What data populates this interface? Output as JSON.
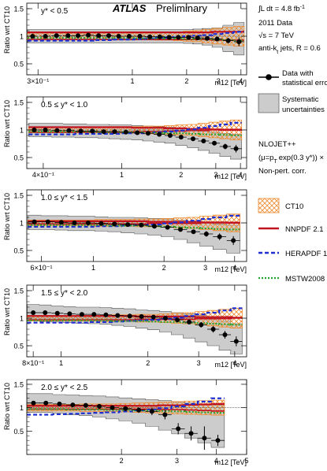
{
  "header": {
    "experiment": "ATLAS",
    "status": "Preliminary",
    "lumi_prefix": "∫L dt = 4.8 fb",
    "lumi_exp": "-1",
    "dataset": "2011 Data",
    "energy": "√s = 7 TeV",
    "jets": "anti-k",
    "jets_sub": "t",
    "jets_suffix": " jets, R = 0.6"
  },
  "legend": {
    "data": [
      "Data with",
      "statistical error"
    ],
    "syst": [
      "Systematic",
      "uncertainties"
    ],
    "theory": [
      "NLOJET++",
      "(μ=p",
      "exp(0.3 y*)) ×",
      "Non-pert. corr."
    ],
    "theory_sub": "T",
    "ct10": "CT10",
    "nnpdf": "NNPDF 2.1",
    "herapdf": "HERAPDF 1.5",
    "mstw": "MSTW2008"
  },
  "colors": {
    "ct10": "#ee8a2e",
    "nnpdf": "#c0131f",
    "herapdf": "#1f2fd0",
    "mstw": "#22a52c",
    "syst": "#cccccc",
    "data": "#000000"
  },
  "chart_data": [
    {
      "type": "scatter",
      "label": "y* < 0.5",
      "ylabel": "Ratio wrt CT10",
      "xlabel": "m12 [TeV]",
      "xscale": "log",
      "xlim": [
        0.26,
        4.3
      ],
      "ylim": [
        0.3,
        1.6
      ],
      "yticks": [
        0.5,
        1.0,
        1.5
      ],
      "xticklabels": [
        [
          0.3,
          "3×10⁻¹"
        ],
        [
          1,
          "1"
        ],
        [
          2,
          "2"
        ],
        [
          3,
          "3"
        ],
        [
          4,
          "4"
        ]
      ],
      "x": [
        0.28,
        0.33,
        0.38,
        0.44,
        0.5,
        0.57,
        0.65,
        0.74,
        0.84,
        0.96,
        1.1,
        1.25,
        1.42,
        1.6,
        1.8,
        2.05,
        2.3,
        2.6,
        2.95,
        3.4,
        3.9
      ],
      "data_y": [
        1.0,
        1.0,
        1.01,
        1.01,
        1.01,
        1.02,
        1.01,
        1.01,
        1.0,
        1.0,
        1.0,
        0.99,
        0.99,
        0.98,
        0.98,
        0.98,
        0.97,
        0.96,
        0.95,
        0.92,
        0.9
      ],
      "stat_err": [
        0.005,
        0.005,
        0.005,
        0.005,
        0.005,
        0.005,
        0.005,
        0.005,
        0.005,
        0.005,
        0.005,
        0.01,
        0.01,
        0.01,
        0.01,
        0.01,
        0.01,
        0.02,
        0.03,
        0.05,
        0.08
      ],
      "syst_up": [
        1.12,
        1.12,
        1.12,
        1.12,
        1.12,
        1.12,
        1.12,
        1.12,
        1.12,
        1.12,
        1.12,
        1.12,
        1.12,
        1.12,
        1.12,
        1.12,
        1.13,
        1.14,
        1.15,
        1.2,
        1.25
      ],
      "syst_down": [
        0.88,
        0.88,
        0.88,
        0.88,
        0.88,
        0.88,
        0.88,
        0.88,
        0.88,
        0.88,
        0.88,
        0.88,
        0.88,
        0.88,
        0.88,
        0.87,
        0.86,
        0.84,
        0.8,
        0.72,
        0.66
      ],
      "ct10_band": [
        0.94,
        0.94,
        0.94,
        0.94,
        0.94,
        0.94,
        0.94,
        0.94,
        0.94,
        0.94,
        0.94,
        0.94,
        0.93,
        0.93,
        0.92,
        0.91,
        0.9,
        0.88,
        0.86,
        0.84,
        0.82
      ],
      "nnpdf": [
        1.07,
        1.07,
        1.07,
        1.07,
        1.07,
        1.07,
        1.07,
        1.07,
        1.07,
        1.07,
        1.07,
        1.07,
        1.07,
        1.07,
        1.07,
        1.07,
        1.07,
        1.07,
        1.08,
        1.08,
        1.08
      ],
      "herapdf": [
        0.92,
        0.92,
        0.92,
        0.92,
        0.92,
        0.92,
        0.93,
        0.93,
        0.94,
        0.94,
        0.95,
        0.96,
        0.97,
        0.98,
        0.99,
        1.0,
        1.01,
        1.02,
        1.04,
        1.06,
        1.08
      ],
      "mstw": [
        0.97,
        0.97,
        0.97,
        0.97,
        0.97,
        0.97,
        0.97,
        0.97,
        0.97,
        0.97,
        0.96,
        0.96,
        0.96,
        0.96,
        0.96,
        0.95,
        0.95,
        0.95,
        0.94,
        0.93,
        0.92
      ]
    },
    {
      "type": "scatter",
      "label": "0.5 ≤ y* < 1.0",
      "ylabel": "Ratio wrt CT10",
      "xlabel": "m12 [TeV]",
      "xscale": "log",
      "xlim": [
        0.33,
        4.3
      ],
      "ylim": [
        0.3,
        1.6
      ],
      "yticks": [
        0.5,
        1.0,
        1.5
      ],
      "xticklabels": [
        [
          0.4,
          "4×10⁻¹"
        ],
        [
          1,
          "1"
        ],
        [
          2,
          "2"
        ],
        [
          3,
          "3"
        ],
        [
          4,
          "4"
        ]
      ],
      "x": [
        0.36,
        0.41,
        0.47,
        0.54,
        0.62,
        0.71,
        0.81,
        0.92,
        1.05,
        1.2,
        1.36,
        1.55,
        1.76,
        2.0,
        2.3,
        2.6,
        2.95,
        3.35,
        3.8
      ],
      "data_y": [
        1.0,
        1.0,
        0.99,
        0.99,
        0.98,
        0.98,
        0.97,
        0.97,
        0.96,
        0.95,
        0.94,
        0.92,
        0.9,
        0.87,
        0.84,
        0.8,
        0.76,
        0.7,
        0.66
      ],
      "stat_err": [
        0.005,
        0.005,
        0.005,
        0.005,
        0.005,
        0.005,
        0.005,
        0.005,
        0.005,
        0.01,
        0.01,
        0.01,
        0.01,
        0.02,
        0.02,
        0.03,
        0.04,
        0.05,
        0.07
      ],
      "syst_up": [
        1.12,
        1.12,
        1.12,
        1.11,
        1.11,
        1.1,
        1.1,
        1.09,
        1.09,
        1.08,
        1.07,
        1.06,
        1.05,
        1.03,
        1.0,
        0.98,
        0.96,
        0.94,
        0.92
      ],
      "syst_down": [
        0.88,
        0.88,
        0.87,
        0.87,
        0.86,
        0.86,
        0.85,
        0.84,
        0.83,
        0.82,
        0.8,
        0.78,
        0.76,
        0.72,
        0.68,
        0.63,
        0.58,
        0.52,
        0.47
      ],
      "ct10_band": [
        0.95,
        0.95,
        0.95,
        0.95,
        0.95,
        0.95,
        0.95,
        0.94,
        0.94,
        0.94,
        0.93,
        0.93,
        0.92,
        0.91,
        0.9,
        0.88,
        0.86,
        0.84,
        0.82
      ],
      "nnpdf": [
        1.05,
        1.05,
        1.05,
        1.05,
        1.05,
        1.05,
        1.05,
        1.05,
        1.05,
        1.04,
        1.04,
        1.04,
        1.03,
        1.03,
        1.02,
        1.02,
        1.01,
        1.0,
        1.0
      ],
      "herapdf": [
        0.92,
        0.92,
        0.92,
        0.92,
        0.93,
        0.93,
        0.93,
        0.93,
        0.94,
        0.94,
        0.95,
        0.96,
        0.97,
        0.99,
        1.01,
        1.04,
        1.07,
        1.1,
        1.13
      ],
      "mstw": [
        0.97,
        0.97,
        0.97,
        0.97,
        0.97,
        0.97,
        0.96,
        0.96,
        0.96,
        0.96,
        0.95,
        0.95,
        0.94,
        0.94,
        0.93,
        0.92,
        0.92,
        0.91,
        0.9
      ]
    },
    {
      "type": "scatter",
      "label": "1.0 ≤ y* < 1.5",
      "ylabel": "Ratio wrt CT10",
      "xlabel": "m12 [TeV]",
      "xscale": "log",
      "xlim": [
        0.52,
        4.5
      ],
      "ylim": [
        0.3,
        1.6
      ],
      "yticks": [
        0.5,
        1.0,
        1.5
      ],
      "xticklabels": [
        [
          0.6,
          "6×10⁻¹"
        ],
        [
          1,
          "1"
        ],
        [
          2,
          "2"
        ],
        [
          3,
          "3"
        ],
        [
          4,
          "4"
        ]
      ],
      "x": [
        0.56,
        0.64,
        0.73,
        0.83,
        0.95,
        1.08,
        1.23,
        1.4,
        1.6,
        1.82,
        2.07,
        2.35,
        2.67,
        3.03,
        3.45,
        3.95
      ],
      "data_y": [
        1.02,
        1.02,
        1.01,
        1.0,
        1.0,
        0.99,
        0.98,
        0.97,
        0.96,
        0.94,
        0.92,
        0.88,
        0.84,
        0.8,
        0.75,
        0.68
      ],
      "stat_err": [
        0.005,
        0.005,
        0.005,
        0.005,
        0.005,
        0.01,
        0.01,
        0.01,
        0.01,
        0.02,
        0.02,
        0.03,
        0.03,
        0.05,
        0.06,
        0.08
      ],
      "syst_up": [
        1.14,
        1.13,
        1.13,
        1.12,
        1.12,
        1.11,
        1.1,
        1.1,
        1.09,
        1.08,
        1.07,
        1.05,
        1.03,
        1.01,
        0.98,
        0.96
      ],
      "syst_down": [
        0.88,
        0.88,
        0.87,
        0.86,
        0.86,
        0.85,
        0.84,
        0.82,
        0.8,
        0.78,
        0.75,
        0.7,
        0.64,
        0.58,
        0.52,
        0.45
      ],
      "ct10_band": [
        0.95,
        0.95,
        0.95,
        0.95,
        0.95,
        0.94,
        0.94,
        0.94,
        0.93,
        0.93,
        0.92,
        0.91,
        0.9,
        0.88,
        0.86,
        0.84
      ],
      "nnpdf": [
        1.03,
        1.03,
        1.03,
        1.03,
        1.03,
        1.03,
        1.03,
        1.03,
        1.03,
        1.02,
        1.02,
        1.02,
        1.02,
        1.01,
        1.01,
        1.0
      ],
      "herapdf": [
        0.93,
        0.93,
        0.93,
        0.93,
        0.93,
        0.94,
        0.94,
        0.95,
        0.96,
        0.97,
        0.99,
        1.01,
        1.04,
        1.07,
        1.1,
        1.13
      ],
      "mstw": [
        0.96,
        0.96,
        0.96,
        0.96,
        0.96,
        0.96,
        0.95,
        0.95,
        0.95,
        0.94,
        0.93,
        0.92,
        0.91,
        0.9,
        0.89,
        0.88
      ]
    },
    {
      "type": "scatter",
      "label": "1.5 ≤ y* < 2.0",
      "ylabel": "Ratio wrt CT10",
      "xlabel": "m12 [TeV]",
      "xscale": "log",
      "xlim": [
        0.76,
        4.4
      ],
      "ylim": [
        0.3,
        1.6
      ],
      "yticks": [
        0.5,
        1.0,
        1.5
      ],
      "xticklabels": [
        [
          0.8,
          "8×10⁻¹"
        ],
        [
          1,
          "1"
        ],
        [
          2,
          "2"
        ],
        [
          3,
          "3"
        ],
        [
          4,
          "4"
        ]
      ],
      "x": [
        0.8,
        0.88,
        0.97,
        1.07,
        1.18,
        1.3,
        1.43,
        1.57,
        1.73,
        1.9,
        2.09,
        2.3,
        2.53,
        2.78,
        3.06,
        3.37,
        3.7,
        4.05
      ],
      "data_y": [
        1.1,
        1.1,
        1.09,
        1.08,
        1.07,
        1.07,
        1.06,
        1.05,
        1.04,
        1.03,
        1.02,
        1.0,
        0.97,
        0.93,
        0.88,
        0.8,
        0.7,
        0.58
      ],
      "stat_err": [
        0.01,
        0.01,
        0.01,
        0.01,
        0.01,
        0.01,
        0.01,
        0.02,
        0.02,
        0.02,
        0.02,
        0.03,
        0.03,
        0.04,
        0.05,
        0.06,
        0.07,
        0.09
      ],
      "syst_up": [
        1.25,
        1.24,
        1.22,
        1.21,
        1.2,
        1.2,
        1.19,
        1.18,
        1.17,
        1.15,
        1.14,
        1.12,
        1.1,
        1.08,
        1.05,
        1.0,
        0.95,
        0.9
      ],
      "syst_down": [
        0.95,
        0.94,
        0.93,
        0.92,
        0.91,
        0.9,
        0.89,
        0.87,
        0.85,
        0.82,
        0.79,
        0.75,
        0.7,
        0.64,
        0.57,
        0.5,
        0.42,
        0.35
      ],
      "ct10_band": [
        0.95,
        0.95,
        0.95,
        0.95,
        0.95,
        0.95,
        0.94,
        0.94,
        0.94,
        0.93,
        0.93,
        0.92,
        0.91,
        0.9,
        0.88,
        0.86,
        0.84,
        0.82
      ],
      "nnpdf": [
        1.04,
        1.04,
        1.04,
        1.04,
        1.04,
        1.04,
        1.04,
        1.04,
        1.04,
        1.03,
        1.03,
        1.03,
        1.03,
        1.03,
        1.02,
        1.02,
        1.02,
        1.01
      ],
      "herapdf": [
        0.92,
        0.92,
        0.92,
        0.92,
        0.92,
        0.93,
        0.93,
        0.94,
        0.95,
        0.96,
        0.97,
        0.99,
        1.01,
        1.04,
        1.07,
        1.1,
        1.14,
        1.18
      ],
      "mstw": [
        0.96,
        0.96,
        0.96,
        0.96,
        0.96,
        0.96,
        0.96,
        0.95,
        0.95,
        0.95,
        0.94,
        0.93,
        0.93,
        0.92,
        0.91,
        0.9,
        0.89,
        0.88
      ]
    },
    {
      "type": "scatter",
      "label": "2.0 ≤ y* < 2.5",
      "ylabel": "Ratio wrt CT10",
      "xlabel": "m12 [TeV]",
      "xscale": "log",
      "xlim": [
        1.0,
        5.0
      ],
      "ylim": [
        0.0,
        1.6
      ],
      "yticks": [
        0.5,
        1.0,
        1.5
      ],
      "xticklabels": [
        [
          2,
          "2"
        ],
        [
          3,
          "3"
        ],
        [
          4,
          "4"
        ],
        [
          5,
          "5"
        ]
      ],
      "x": [
        1.05,
        1.15,
        1.27,
        1.4,
        1.54,
        1.7,
        1.87,
        2.06,
        2.27,
        2.5,
        2.75,
        3.03,
        3.33,
        3.67,
        4.05
      ],
      "data_y": [
        1.1,
        1.1,
        1.08,
        1.06,
        1.05,
        1.03,
        1.0,
        0.98,
        0.95,
        0.92,
        0.85,
        0.55,
        0.45,
        0.35,
        0.3
      ],
      "stat_err": [
        0.03,
        0.03,
        0.03,
        0.03,
        0.04,
        0.04,
        0.05,
        0.05,
        0.06,
        0.08,
        0.1,
        0.12,
        0.15,
        0.25,
        0.12
      ],
      "syst_up": [
        1.3,
        1.3,
        1.28,
        1.27,
        1.26,
        1.25,
        1.23,
        1.21,
        1.19,
        1.17,
        1.15,
        1.12,
        1.1,
        1.08,
        1.05
      ],
      "syst_down": [
        0.9,
        0.9,
        0.88,
        0.85,
        0.83,
        0.8,
        0.76,
        0.72,
        0.67,
        0.6,
        0.52,
        0.44,
        0.35,
        0.25,
        0.15
      ],
      "ct10_band": [
        0.93,
        0.93,
        0.93,
        0.93,
        0.92,
        0.92,
        0.92,
        0.91,
        0.9,
        0.89,
        0.88,
        0.87,
        0.86,
        0.85,
        0.84
      ],
      "nnpdf": [
        1.04,
        1.04,
        1.04,
        1.04,
        1.04,
        1.04,
        1.04,
        1.04,
        1.04,
        1.04,
        1.05,
        1.05,
        1.06,
        1.07,
        1.08
      ],
      "herapdf": [
        0.85,
        0.85,
        0.86,
        0.87,
        0.88,
        0.89,
        0.9,
        0.92,
        0.94,
        0.96,
        0.99,
        1.03,
        1.08,
        1.13,
        1.2
      ],
      "mstw": [
        0.97,
        0.97,
        0.97,
        0.96,
        0.96,
        0.96,
        0.95,
        0.95,
        0.94,
        0.94,
        0.93,
        0.92,
        0.91,
        0.9,
        0.89
      ]
    }
  ]
}
